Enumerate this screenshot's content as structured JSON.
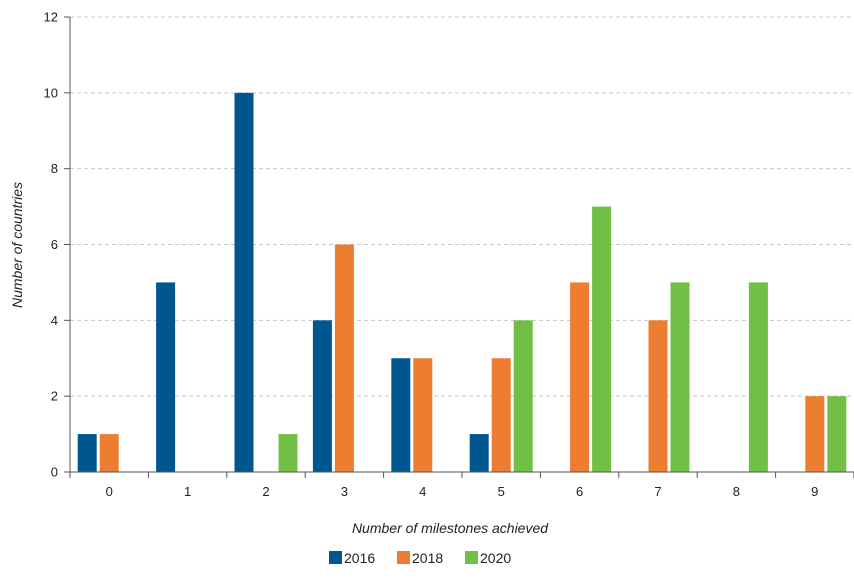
{
  "chart_data": {
    "type": "bar",
    "title": "",
    "xlabel": "Number of milestones achieved",
    "ylabel": "Number of countries",
    "categories": [
      "0",
      "1",
      "2",
      "3",
      "4",
      "5",
      "6",
      "7",
      "8",
      "9"
    ],
    "series": [
      {
        "name": "2016",
        "color": "#00568f",
        "values": [
          1,
          5,
          10,
          4,
          3,
          1,
          0,
          0,
          0,
          0
        ]
      },
      {
        "name": "2018",
        "color": "#ed7d31",
        "values": [
          1,
          0,
          0,
          6,
          3,
          3,
          5,
          4,
          0,
          2
        ]
      },
      {
        "name": "2020",
        "color": "#71bf44",
        "values": [
          0,
          0,
          1,
          0,
          0,
          4,
          7,
          5,
          5,
          2
        ]
      }
    ],
    "ylim": [
      0,
      12
    ],
    "yticks": [
      0,
      2,
      4,
      6,
      8,
      10,
      12
    ],
    "grid": "horizontal-dashed",
    "legend_position": "bottom-center"
  }
}
